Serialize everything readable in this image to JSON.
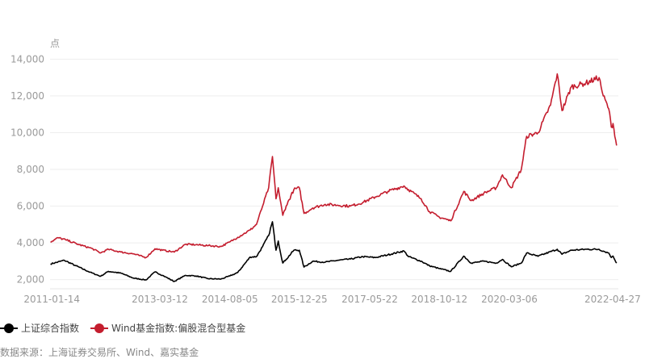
{
  "chart_data": {
    "type": "line",
    "ylabel": "点",
    "ylim": [
      1500,
      14500
    ],
    "y_ticks": [
      2000,
      4000,
      6000,
      8000,
      10000,
      12000,
      14000
    ],
    "y_tick_labels": [
      "2,000",
      "4,000",
      "6,000",
      "8,000",
      "10,000",
      "12,000",
      "14,000"
    ],
    "x_range": [
      "2011-01-01",
      "2022-05-10"
    ],
    "x_ticks": [
      "2011-01-14",
      "2013-03-12",
      "2014-08-05",
      "2015-12-25",
      "2017-05-22",
      "2018-10-12",
      "2020-03-06",
      "2022-04-27"
    ],
    "grid": true,
    "legend_position": "bottom-left",
    "series": [
      {
        "name": "上证综合指数",
        "color": "#000000",
        "points": [
          [
            "2011-01-04",
            2850
          ],
          [
            "2011-04-15",
            3050
          ],
          [
            "2011-07-01",
            2780
          ],
          [
            "2011-10-20",
            2400
          ],
          [
            "2012-01-05",
            2180
          ],
          [
            "2012-03-01",
            2450
          ],
          [
            "2012-06-01",
            2350
          ],
          [
            "2012-09-01",
            2080
          ],
          [
            "2012-12-01",
            1980
          ],
          [
            "2013-02-05",
            2420
          ],
          [
            "2013-04-01",
            2230
          ],
          [
            "2013-06-25",
            1900
          ],
          [
            "2013-09-15",
            2230
          ],
          [
            "2013-12-01",
            2200
          ],
          [
            "2014-03-01",
            2050
          ],
          [
            "2014-06-01",
            2030
          ],
          [
            "2014-08-05",
            2200
          ],
          [
            "2014-10-01",
            2380
          ],
          [
            "2014-12-31",
            3230
          ],
          [
            "2015-02-15",
            3250
          ],
          [
            "2015-04-01",
            3800
          ],
          [
            "2015-05-15",
            4400
          ],
          [
            "2015-06-12",
            5150
          ],
          [
            "2015-07-08",
            3600
          ],
          [
            "2015-07-24",
            4100
          ],
          [
            "2015-08-26",
            2900
          ],
          [
            "2015-09-20",
            3100
          ],
          [
            "2015-11-15",
            3600
          ],
          [
            "2015-12-25",
            3600
          ],
          [
            "2016-01-28",
            2680
          ],
          [
            "2016-04-01",
            3000
          ],
          [
            "2016-07-01",
            2950
          ],
          [
            "2016-10-01",
            3050
          ],
          [
            "2017-01-01",
            3120
          ],
          [
            "2017-04-01",
            3250
          ],
          [
            "2017-07-01",
            3200
          ],
          [
            "2017-10-01",
            3350
          ],
          [
            "2018-01-26",
            3560
          ],
          [
            "2018-03-01",
            3250
          ],
          [
            "2018-06-01",
            3000
          ],
          [
            "2018-08-01",
            2750
          ],
          [
            "2018-10-12",
            2600
          ],
          [
            "2019-01-03",
            2450
          ],
          [
            "2019-04-08",
            3280
          ],
          [
            "2019-06-01",
            2900
          ],
          [
            "2019-09-01",
            3000
          ],
          [
            "2019-12-01",
            2900
          ],
          [
            "2020-01-15",
            3100
          ],
          [
            "2020-03-20",
            2700
          ],
          [
            "2020-06-01",
            2900
          ],
          [
            "2020-07-10",
            3450
          ],
          [
            "2020-10-01",
            3270
          ],
          [
            "2021-02-18",
            3650
          ],
          [
            "2021-03-25",
            3380
          ],
          [
            "2021-06-01",
            3600
          ],
          [
            "2021-09-15",
            3650
          ],
          [
            "2021-12-20",
            3650
          ],
          [
            "2022-01-20",
            3550
          ],
          [
            "2022-03-01",
            3450
          ],
          [
            "2022-03-20",
            3200
          ],
          [
            "2022-04-01",
            3280
          ],
          [
            "2022-04-27",
            2900
          ]
        ]
      },
      {
        "name": "Wind基金指数:偏股混合型基金",
        "color": "#c41d2e",
        "points": [
          [
            "2011-01-04",
            4050
          ],
          [
            "2011-03-01",
            4280
          ],
          [
            "2011-05-01",
            4150
          ],
          [
            "2011-08-01",
            3900
          ],
          [
            "2011-11-01",
            3700
          ],
          [
            "2012-01-05",
            3450
          ],
          [
            "2012-03-01",
            3650
          ],
          [
            "2012-06-01",
            3500
          ],
          [
            "2012-09-01",
            3400
          ],
          [
            "2012-12-01",
            3200
          ],
          [
            "2013-02-05",
            3680
          ],
          [
            "2013-04-01",
            3600
          ],
          [
            "2013-06-25",
            3500
          ],
          [
            "2013-09-15",
            3920
          ],
          [
            "2013-12-01",
            3900
          ],
          [
            "2014-03-01",
            3850
          ],
          [
            "2014-06-01",
            3800
          ],
          [
            "2014-08-05",
            4050
          ],
          [
            "2014-10-01",
            4300
          ],
          [
            "2014-12-31",
            4700
          ],
          [
            "2015-02-15",
            5000
          ],
          [
            "2015-04-01",
            6000
          ],
          [
            "2015-05-15",
            7000
          ],
          [
            "2015-06-12",
            8700
          ],
          [
            "2015-07-08",
            6400
          ],
          [
            "2015-07-24",
            7000
          ],
          [
            "2015-08-26",
            5500
          ],
          [
            "2015-09-20",
            6000
          ],
          [
            "2015-11-15",
            6900
          ],
          [
            "2015-12-25",
            7000
          ],
          [
            "2016-01-28",
            5600
          ],
          [
            "2016-04-01",
            5900
          ],
          [
            "2016-07-01",
            6100
          ],
          [
            "2016-10-01",
            6050
          ],
          [
            "2017-01-01",
            6000
          ],
          [
            "2017-04-01",
            6200
          ],
          [
            "2017-07-01",
            6500
          ],
          [
            "2017-10-01",
            6800
          ],
          [
            "2018-01-26",
            7100
          ],
          [
            "2018-03-01",
            6900
          ],
          [
            "2018-06-01",
            6400
          ],
          [
            "2018-08-01",
            5700
          ],
          [
            "2018-10-12",
            5400
          ],
          [
            "2019-01-03",
            5200
          ],
          [
            "2019-04-08",
            6800
          ],
          [
            "2019-06-01",
            6300
          ],
          [
            "2019-09-01",
            6700
          ],
          [
            "2019-12-01",
            7000
          ],
          [
            "2020-01-15",
            7700
          ],
          [
            "2020-03-20",
            7000
          ],
          [
            "2020-06-01",
            8000
          ],
          [
            "2020-07-10",
            9800
          ],
          [
            "2020-10-01",
            10000
          ],
          [
            "2020-12-31",
            11500
          ],
          [
            "2021-02-18",
            13200
          ],
          [
            "2021-03-25",
            11200
          ],
          [
            "2021-06-01",
            12500
          ],
          [
            "2021-09-15",
            12700
          ],
          [
            "2021-12-20",
            13000
          ],
          [
            "2022-01-20",
            12000
          ],
          [
            "2022-03-01",
            11300
          ],
          [
            "2022-03-20",
            10300
          ],
          [
            "2022-04-01",
            10500
          ],
          [
            "2022-04-27",
            9300
          ]
        ]
      }
    ]
  },
  "source_text": "数据来源：上海证券交易所、Wind、嘉实基金"
}
